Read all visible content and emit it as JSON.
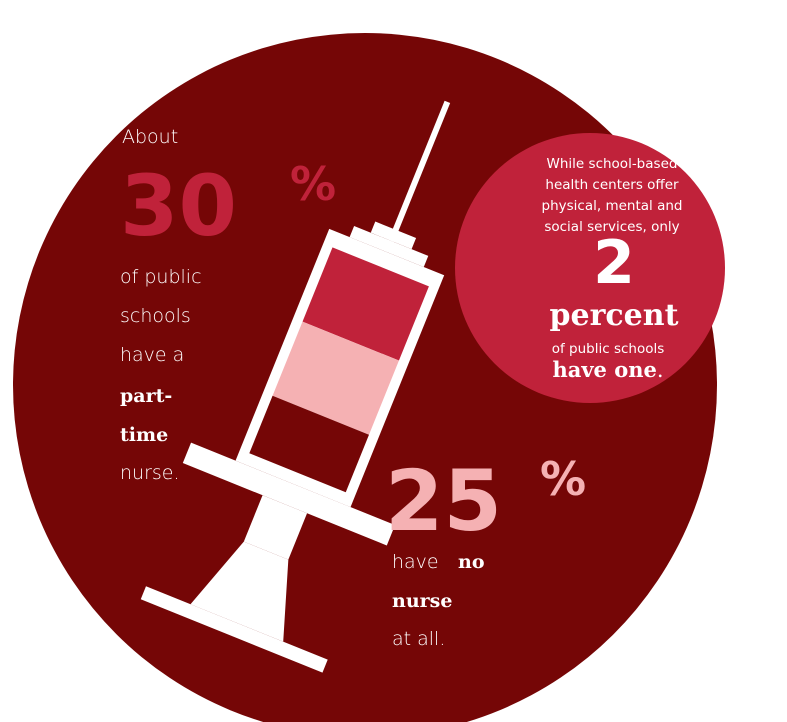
{
  "left_stat": {
    "intro": "About",
    "number": 30,
    "unit": "%",
    "lines": [
      "of public",
      "schools",
      "have a"
    ],
    "bold_lines": [
      "part-",
      "time"
    ],
    "last_line": "nurse."
  },
  "bottom_stat": {
    "number": 25,
    "unit": "%",
    "line1_plain": "have",
    "line1_bold": "no",
    "line2_bold": "nurse",
    "line3": "at all."
  },
  "callout": {
    "lines": [
      "While school-based",
      "health centers offer",
      "physical, mental and",
      "social services, only"
    ],
    "number": 2,
    "word": "percent",
    "sub": "of public schools",
    "bold_end": "have one",
    "period": "."
  }
}
